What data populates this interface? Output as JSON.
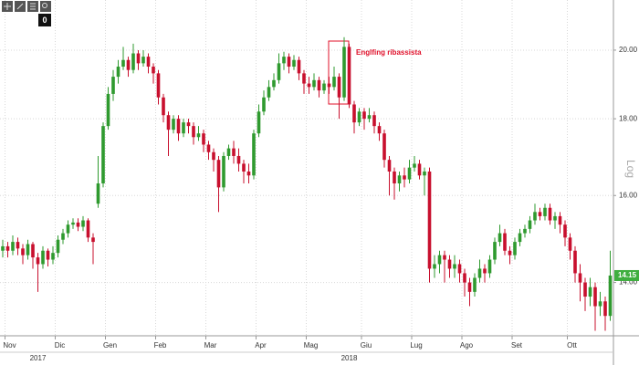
{
  "toolbar_badge": "0",
  "chart_data": {
    "type": "candlestick",
    "annotation": "Englfing ribassista",
    "y_label": "Log",
    "log_scale": true,
    "grid": true,
    "up_color": "#2f9a2f",
    "down_color": "#c8102e",
    "annotation_color": "#e0102a",
    "last_price": 14.15,
    "last_price_color": "#3fae3f",
    "ylim": [
      12.9,
      21.6
    ],
    "yticks": [
      {
        "value": 14,
        "label": "14.00"
      },
      {
        "value": 16,
        "label": "16.00"
      },
      {
        "value": 18,
        "label": "18.00"
      },
      {
        "value": 20,
        "label": "20.00"
      }
    ],
    "categories": [
      null,
      "Nov",
      null,
      null,
      null,
      null,
      null,
      null,
      null,
      null,
      null,
      "Dic",
      null,
      null,
      null,
      null,
      null,
      null,
      null,
      null,
      null,
      "Gen",
      null,
      null,
      null,
      null,
      null,
      null,
      null,
      null,
      null,
      "Feb",
      null,
      null,
      null,
      null,
      null,
      null,
      null,
      null,
      null,
      "Mar",
      null,
      null,
      null,
      null,
      null,
      null,
      null,
      null,
      null,
      "Apr",
      null,
      null,
      null,
      null,
      null,
      null,
      null,
      null,
      null,
      "Mag",
      null,
      null,
      null,
      null,
      null,
      null,
      null,
      null,
      null,
      null,
      "Giu",
      null,
      null,
      null,
      null,
      null,
      null,
      null,
      null,
      null,
      "Lug",
      null,
      null,
      null,
      null,
      null,
      null,
      null,
      null,
      null,
      "Ago",
      null,
      null,
      null,
      null,
      null,
      null,
      null,
      null,
      null,
      "Set",
      null,
      null,
      null,
      null,
      null,
      null,
      null,
      null,
      null,
      null,
      "Ott",
      null,
      null,
      null,
      null,
      null,
      null,
      null,
      null
    ],
    "year_categories": [
      null,
      null,
      null,
      null,
      null,
      null,
      null,
      "2017",
      null,
      null,
      null,
      null,
      null,
      null,
      null,
      null,
      null,
      null,
      null,
      null,
      null,
      null,
      null,
      null,
      null,
      null,
      null,
      null,
      null,
      null,
      null,
      null,
      null,
      null,
      null,
      null,
      null,
      null,
      null,
      null,
      null,
      null,
      null,
      null,
      null,
      null,
      null,
      null,
      null,
      null,
      null,
      null,
      null,
      null,
      null,
      null,
      null,
      null,
      null,
      null,
      null,
      null,
      null,
      null,
      null,
      null,
      null,
      null,
      null,
      "2018",
      null,
      null,
      null,
      null,
      null,
      null,
      null,
      null,
      null,
      null,
      null,
      null,
      null,
      null,
      null,
      null,
      null,
      null,
      null,
      null,
      null,
      null,
      null,
      null,
      null,
      null,
      null,
      null,
      null,
      null,
      null,
      null,
      null,
      null,
      null,
      null,
      null,
      null,
      null,
      null,
      null,
      null,
      null,
      null,
      null,
      null,
      null,
      null,
      null,
      null,
      null,
      null
    ],
    "open": [
      14.7,
      14.8,
      14.7,
      14.9,
      14.75,
      14.6,
      14.85,
      14.55,
      14.4,
      14.7,
      14.5,
      14.65,
      14.95,
      15.1,
      15.3,
      15.35,
      15.25,
      15.4,
      15.0,
      15.8,
      16.3,
      17.8,
      18.7,
      19.2,
      19.5,
      19.7,
      19.4,
      19.9,
      19.6,
      19.8,
      19.5,
      19.3,
      18.6,
      18.1,
      17.7,
      18.0,
      17.6,
      17.9,
      17.8,
      17.5,
      17.6,
      17.3,
      17.1,
      16.9,
      16.2,
      17.0,
      17.2,
      17.0,
      16.8,
      16.6,
      16.5,
      17.6,
      18.2,
      18.6,
      18.9,
      19.1,
      19.6,
      19.8,
      19.5,
      19.7,
      19.3,
      19.0,
      18.9,
      19.1,
      18.8,
      19.0,
      18.9,
      19.2,
      18.6,
      20.1,
      18.4,
      17.9,
      18.2,
      18.0,
      18.1,
      17.8,
      17.6,
      16.9,
      16.6,
      16.3,
      16.5,
      16.4,
      16.7,
      16.8,
      16.5,
      16.6,
      14.3,
      14.4,
      14.6,
      14.5,
      14.3,
      14.4,
      14.2,
      14.0,
      13.8,
      14.1,
      14.3,
      14.2,
      14.5,
      14.9,
      15.1,
      14.7,
      14.6,
      14.9,
      15.1,
      15.2,
      15.4,
      15.6,
      15.5,
      15.7,
      15.4,
      15.5,
      15.3,
      15.0,
      14.7,
      14.2,
      14.0,
      13.7,
      13.9,
      13.5,
      13.6,
      13.3
    ],
    "high": [
      14.95,
      14.9,
      15.05,
      15.0,
      14.85,
      14.95,
      14.9,
      14.65,
      14.8,
      14.75,
      14.8,
      15.05,
      15.2,
      15.4,
      15.45,
      15.45,
      15.5,
      15.45,
      15.1,
      17.0,
      17.9,
      18.9,
      19.4,
      19.7,
      20.1,
      19.8,
      20.2,
      20.0,
      20.0,
      19.9,
      19.6,
      19.4,
      18.7,
      18.2,
      18.1,
      18.1,
      18.0,
      18.0,
      17.9,
      17.8,
      17.7,
      17.4,
      17.2,
      17.0,
      17.1,
      17.3,
      17.4,
      17.2,
      16.9,
      16.8,
      17.7,
      18.4,
      18.8,
      19.1,
      19.3,
      19.9,
      19.95,
      19.9,
      19.85,
      19.8,
      19.4,
      19.2,
      19.3,
      19.2,
      19.1,
      19.2,
      19.5,
      19.3,
      20.4,
      20.2,
      18.5,
      18.3,
      18.3,
      18.3,
      18.2,
      17.9,
      17.7,
      17.0,
      16.7,
      16.6,
      16.7,
      16.9,
      17.0,
      16.9,
      16.7,
      16.7,
      14.6,
      14.7,
      14.7,
      14.6,
      14.6,
      14.5,
      14.3,
      14.1,
      14.2,
      14.5,
      14.4,
      14.6,
      15.0,
      15.3,
      15.2,
      14.8,
      15.0,
      15.2,
      15.3,
      15.5,
      15.8,
      15.7,
      15.8,
      15.8,
      15.6,
      15.6,
      15.4,
      15.1,
      14.8,
      14.4,
      14.1,
      14.1,
      14.0,
      13.8,
      13.7,
      14.7
    ],
    "low": [
      14.55,
      14.55,
      14.6,
      14.6,
      14.4,
      14.5,
      14.3,
      13.8,
      14.3,
      14.35,
      14.4,
      14.55,
      14.85,
      15.0,
      15.2,
      15.15,
      15.15,
      14.9,
      14.4,
      15.7,
      16.2,
      17.7,
      18.5,
      19.0,
      19.4,
      19.2,
      19.3,
      19.4,
      19.5,
      19.3,
      19.0,
      18.4,
      17.9,
      17.0,
      17.6,
      17.4,
      17.5,
      17.6,
      17.3,
      17.4,
      17.1,
      16.9,
      16.6,
      15.6,
      16.1,
      16.9,
      16.8,
      16.6,
      16.3,
      16.3,
      16.4,
      17.5,
      18.1,
      18.5,
      18.8,
      19.0,
      19.4,
      19.3,
      19.4,
      19.1,
      18.7,
      18.7,
      18.8,
      18.6,
      18.7,
      18.7,
      18.8,
      18.0,
      18.5,
      18.3,
      17.6,
      17.8,
      17.7,
      17.9,
      17.6,
      17.4,
      16.7,
      16.0,
      15.9,
      16.1,
      16.2,
      16.3,
      16.6,
      16.4,
      16.0,
      14.0,
      14.1,
      14.2,
      14.0,
      14.1,
      14.1,
      14.0,
      13.7,
      13.5,
      13.7,
      14.0,
      14.0,
      14.1,
      14.4,
      14.8,
      14.6,
      14.4,
      14.5,
      14.8,
      15.0,
      15.1,
      15.3,
      15.4,
      15.4,
      15.3,
      15.2,
      15.1,
      14.8,
      14.5,
      14.0,
      13.6,
      13.4,
      13.5,
      13.0,
      13.3,
      13.0,
      13.2
    ],
    "close": [
      14.8,
      14.7,
      14.9,
      14.75,
      14.6,
      14.85,
      14.55,
      14.4,
      14.7,
      14.5,
      14.65,
      14.95,
      15.1,
      15.3,
      15.35,
      15.25,
      15.4,
      15.0,
      14.9,
      16.3,
      17.8,
      18.7,
      19.2,
      19.5,
      19.7,
      19.4,
      19.9,
      19.6,
      19.8,
      19.5,
      19.3,
      18.6,
      18.1,
      17.7,
      18.0,
      17.6,
      17.9,
      17.8,
      17.5,
      17.6,
      17.3,
      17.1,
      16.9,
      16.2,
      17.0,
      17.2,
      17.0,
      16.8,
      16.6,
      16.5,
      17.6,
      18.2,
      18.6,
      18.9,
      19.1,
      19.6,
      19.8,
      19.5,
      19.7,
      19.3,
      19.0,
      18.9,
      19.1,
      18.8,
      19.0,
      18.9,
      19.2,
      18.6,
      20.1,
      18.4,
      17.9,
      18.2,
      18.0,
      18.1,
      17.8,
      17.6,
      16.9,
      16.6,
      16.3,
      16.5,
      16.4,
      16.7,
      16.8,
      16.5,
      16.6,
      14.3,
      14.4,
      14.6,
      14.5,
      14.3,
      14.4,
      14.2,
      14.0,
      13.8,
      14.1,
      14.3,
      14.2,
      14.5,
      14.9,
      15.1,
      14.7,
      14.6,
      14.9,
      15.1,
      15.2,
      15.4,
      15.6,
      15.5,
      15.7,
      15.4,
      15.5,
      15.3,
      15.0,
      14.7,
      14.2,
      14.0,
      13.7,
      13.9,
      13.5,
      13.6,
      13.3,
      14.15
    ]
  }
}
